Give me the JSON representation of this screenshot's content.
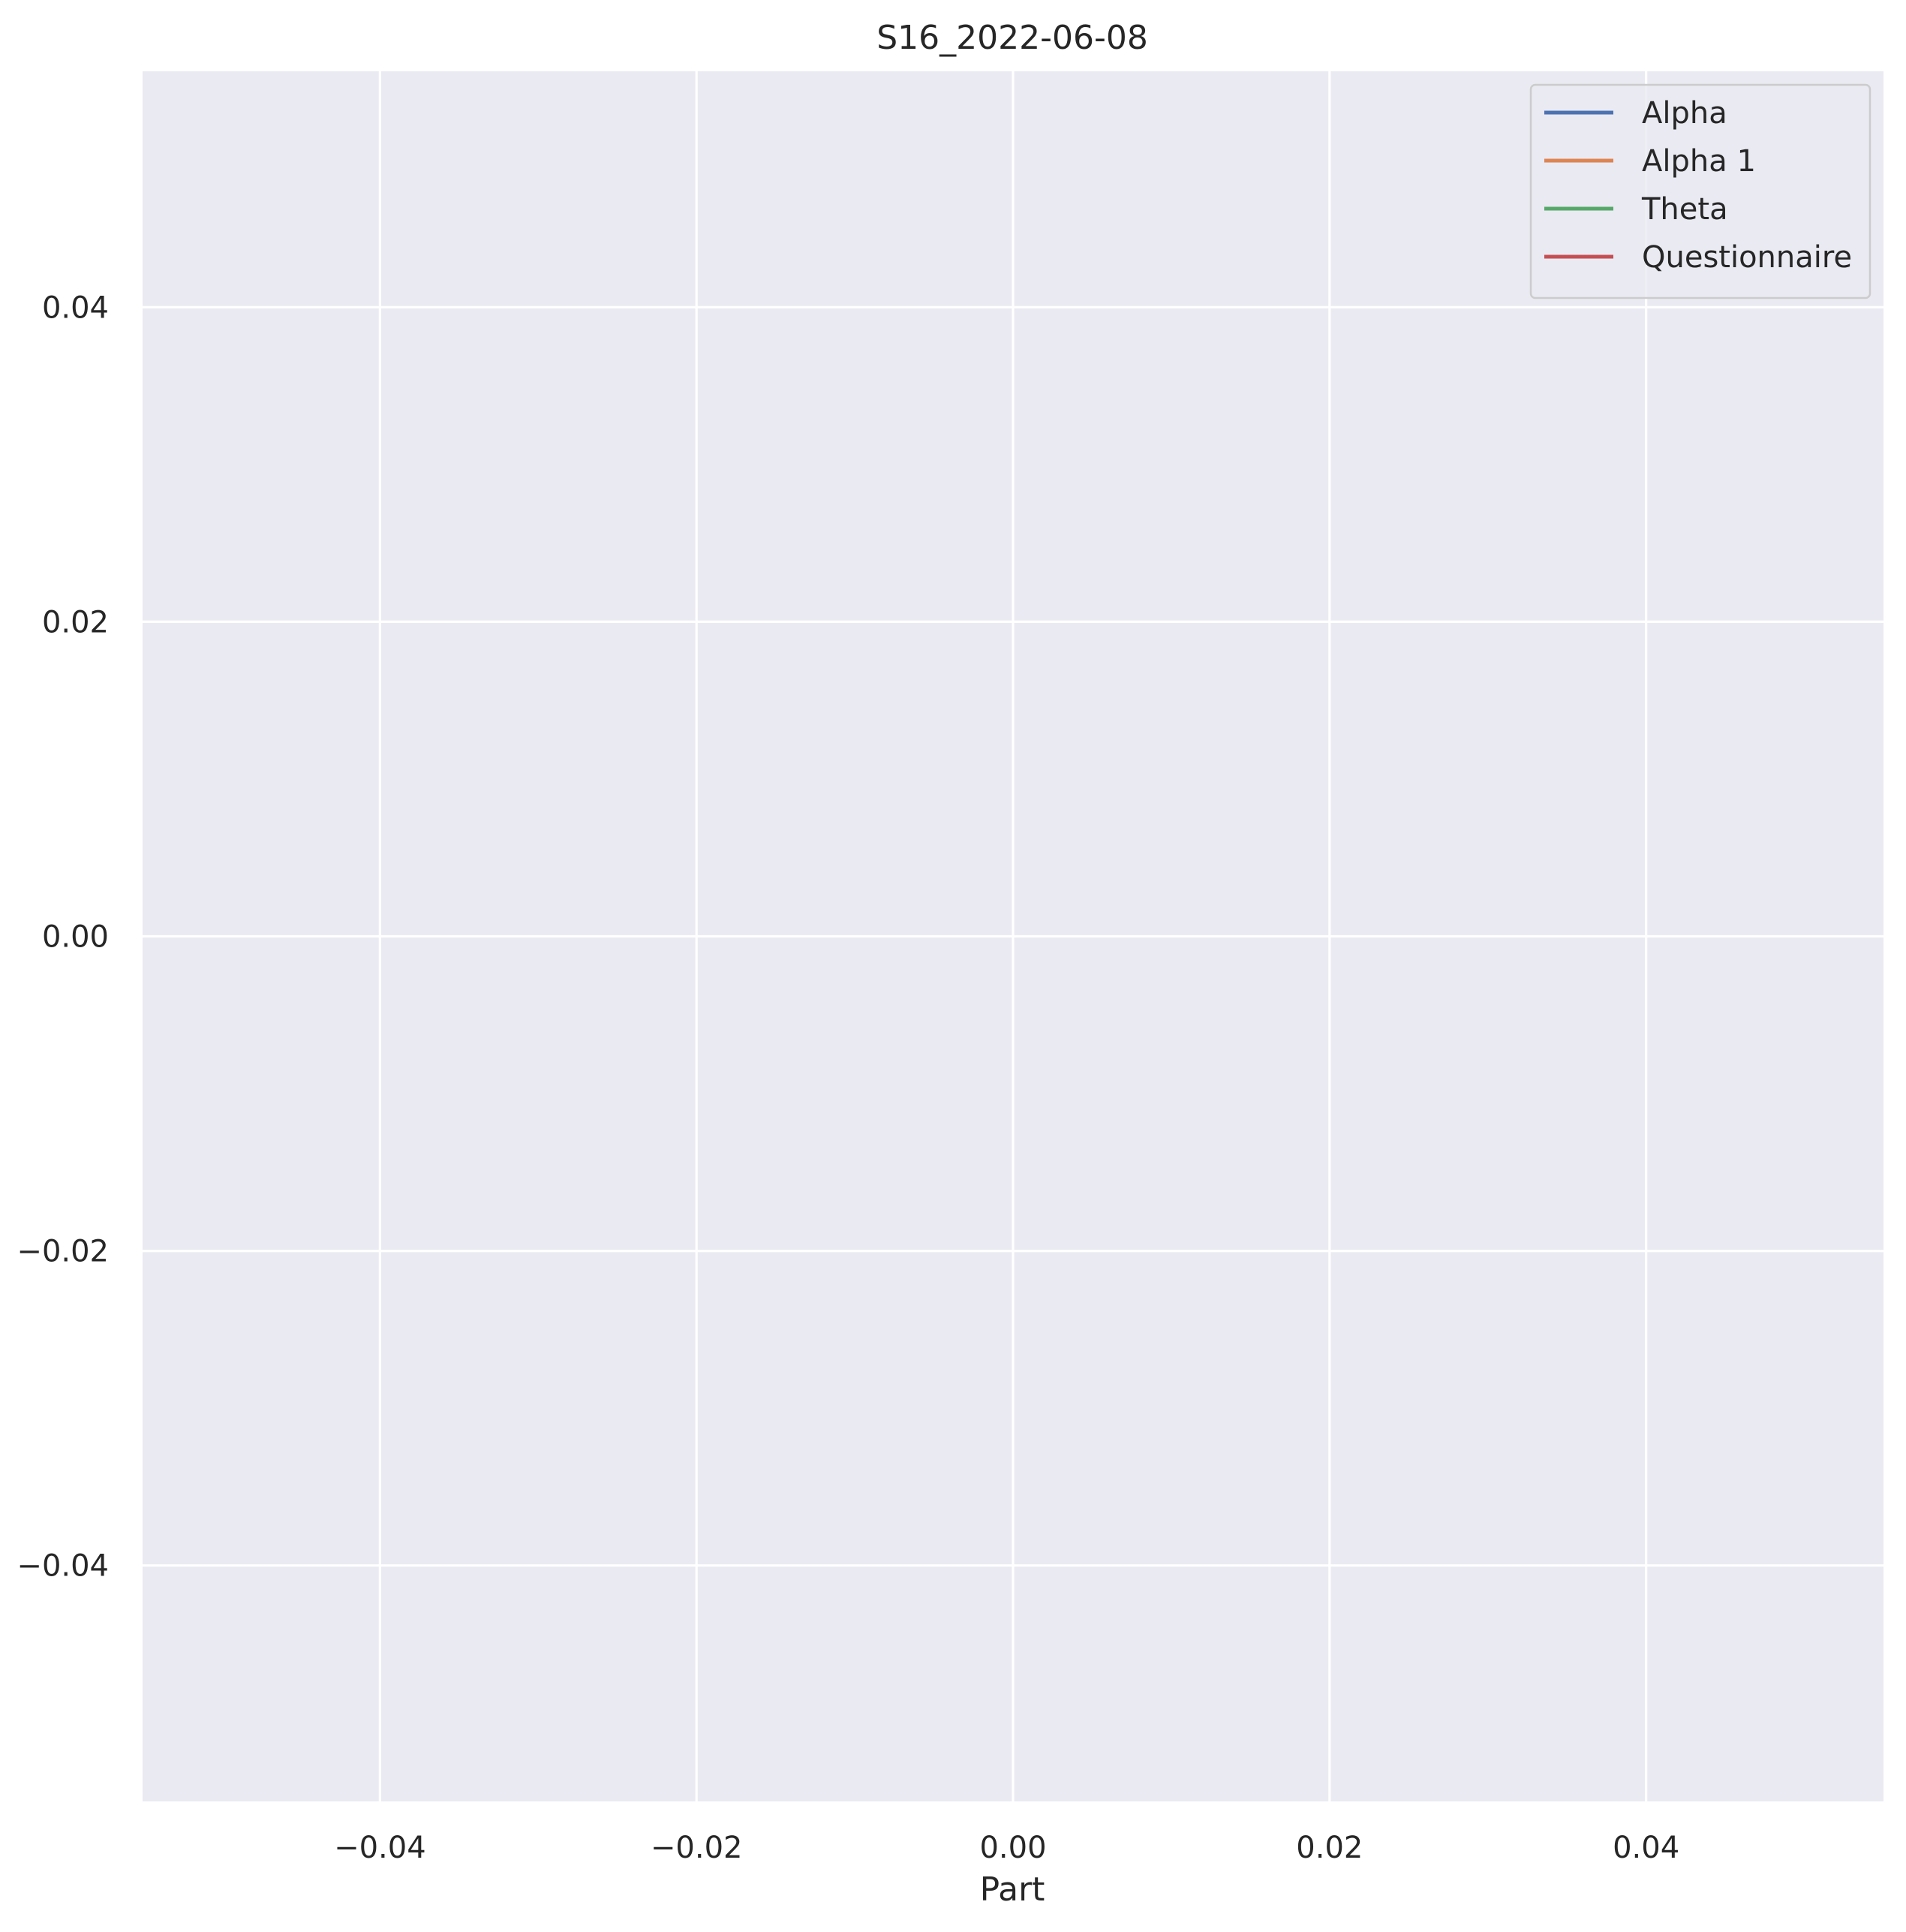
{
  "chart_data": {
    "type": "line",
    "title": "S16_2022-06-08",
    "xlabel": "Part",
    "ylabel": "",
    "xlim": [
      -0.055,
      0.055
    ],
    "ylim": [
      -0.055,
      0.055
    ],
    "x_ticks": [
      {
        "value": -0.04,
        "label": "−0.04"
      },
      {
        "value": -0.02,
        "label": "−0.02"
      },
      {
        "value": 0.0,
        "label": "0.00"
      },
      {
        "value": 0.02,
        "label": "0.02"
      },
      {
        "value": 0.04,
        "label": "0.04"
      }
    ],
    "y_ticks": [
      {
        "value": 0.04,
        "label": "0.04"
      },
      {
        "value": 0.02,
        "label": "0.02"
      },
      {
        "value": 0.0,
        "label": "0.00"
      },
      {
        "value": -0.02,
        "label": "−0.02"
      },
      {
        "value": -0.04,
        "label": "−0.04"
      }
    ],
    "grid": true,
    "legend_position": "top-right",
    "series": [
      {
        "name": "Alpha",
        "color": "#4c72b0",
        "x": [],
        "y": []
      },
      {
        "name": "Alpha 1",
        "color": "#dd8452",
        "x": [],
        "y": []
      },
      {
        "name": "Theta",
        "color": "#55a868",
        "x": [],
        "y": []
      },
      {
        "name": "Questionnaire",
        "color": "#c44e52",
        "x": [],
        "y": []
      }
    ],
    "background_color": "#eaeaf2"
  }
}
